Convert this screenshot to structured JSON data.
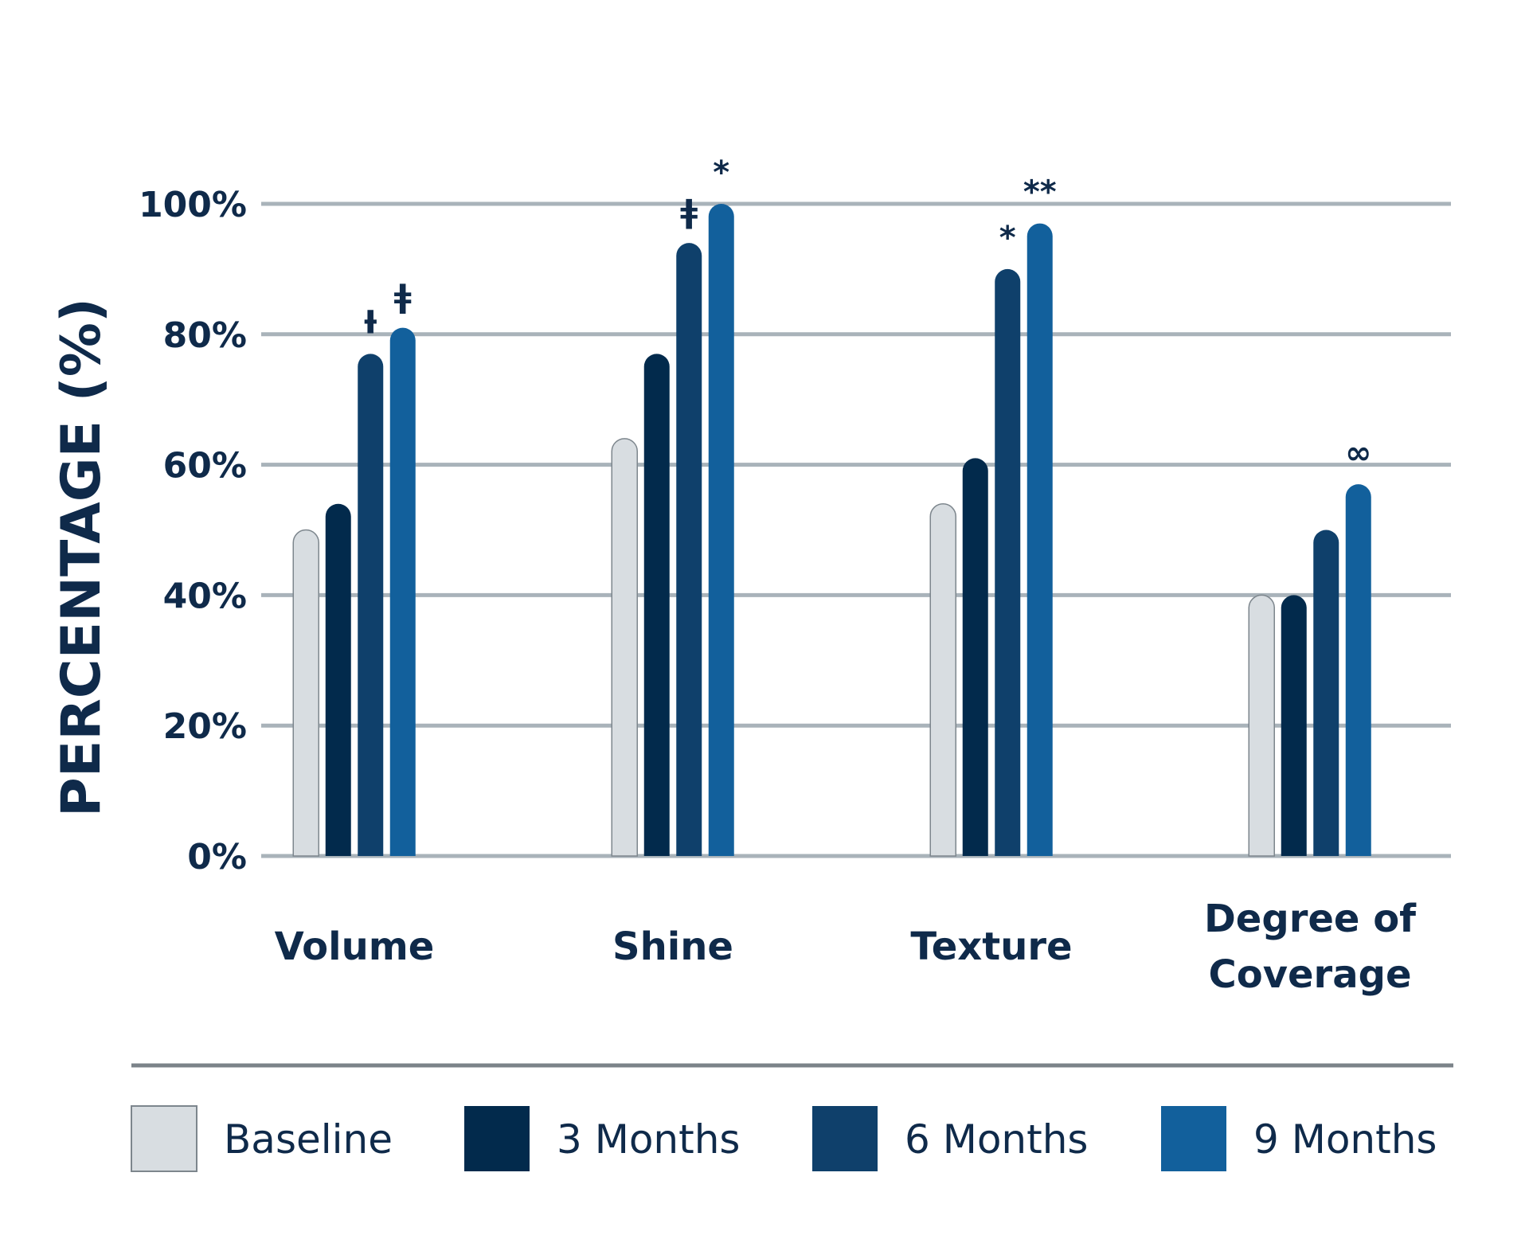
{
  "chart_data": {
    "type": "bar",
    "ylabel": "PERCENTAGE (%)",
    "ylim": [
      0,
      100
    ],
    "yticks": [
      0,
      20,
      40,
      60,
      80,
      100
    ],
    "ytick_labels": [
      "0%",
      "20%",
      "40%",
      "60%",
      "80%",
      "100%"
    ],
    "grid": true,
    "categories": [
      [
        "Volume"
      ],
      [
        "Shine"
      ],
      [
        "Texture"
      ],
      [
        "Degree of",
        "Coverage"
      ]
    ],
    "series": [
      {
        "name": "Baseline",
        "color": "#d8dde1",
        "stroke": "#7d868d",
        "values": [
          50,
          64,
          54,
          40
        ]
      },
      {
        "name": "3 Months",
        "color": "#022a4c",
        "values": [
          54,
          77,
          61,
          40
        ]
      },
      {
        "name": "6 Months",
        "color": "#0f406b",
        "values": [
          77,
          94,
          90,
          50
        ]
      },
      {
        "name": "9 Months",
        "color": "#12609c",
        "values": [
          81,
          100,
          97,
          57
        ]
      }
    ],
    "annotations": [
      {
        "category": 0,
        "series": 2,
        "text": "Ɨ"
      },
      {
        "category": 0,
        "series": 3,
        "text": "ǂ"
      },
      {
        "category": 1,
        "series": 2,
        "text": "ǂ"
      },
      {
        "category": 1,
        "series": 3,
        "text": "*"
      },
      {
        "category": 2,
        "series": 2,
        "text": "*"
      },
      {
        "category": 2,
        "series": 3,
        "text": "**"
      },
      {
        "category": 3,
        "series": 3,
        "text": "∞"
      }
    ],
    "legend_position": "bottom",
    "colors": {
      "text": "#0f2a4a",
      "grid": "#a9b3ba",
      "divider": "#7b8389"
    }
  }
}
